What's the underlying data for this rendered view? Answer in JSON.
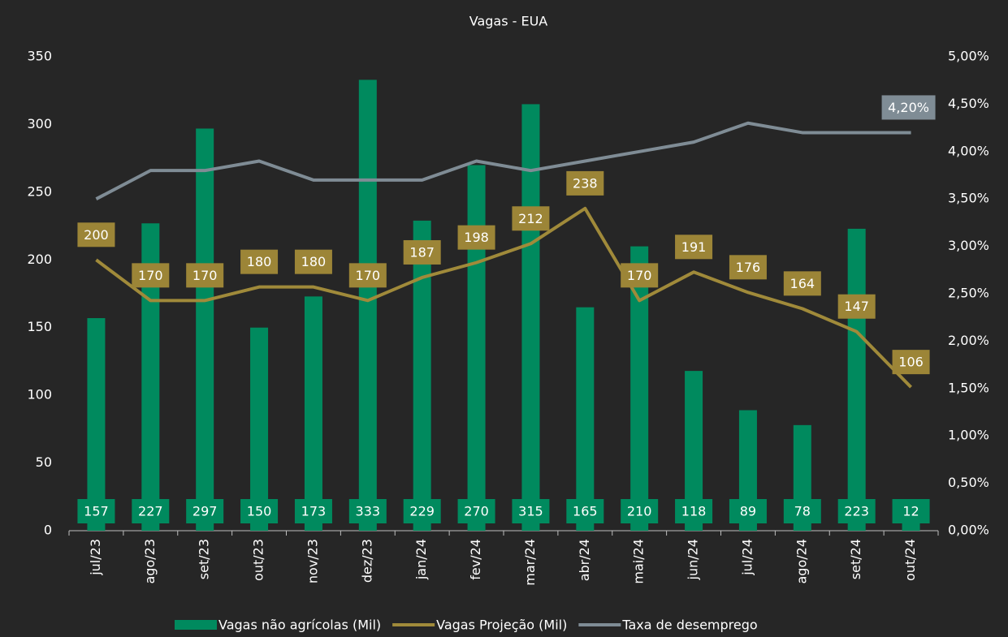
{
  "chart_data": {
    "type": "bar-line",
    "title": "Vagas - EUA",
    "categories": [
      "jul/23",
      "ago/23",
      "set/23",
      "out/23",
      "nov/23",
      "dez/23",
      "jan/24",
      "fev/24",
      "mar/24",
      "abr/24",
      "mai/24",
      "jun/24",
      "jul/24",
      "ago/24",
      "set/24",
      "out/24"
    ],
    "series": [
      {
        "name": "Vagas não agrícolas (Mil)",
        "type": "bar",
        "color": "#008a5e",
        "label_color": "#008a5e",
        "values": [
          157,
          227,
          297,
          150,
          173,
          333,
          229,
          270,
          315,
          165,
          210,
          118,
          89,
          78,
          223,
          12
        ]
      },
      {
        "name": "Vagas Projeção (Mil)",
        "type": "line",
        "color": "#a08a3a",
        "label_color": "#9c8537",
        "values": [
          200,
          170,
          170,
          180,
          180,
          170,
          187,
          198,
          212,
          238,
          170,
          191,
          176,
          164,
          147,
          106
        ]
      },
      {
        "name": "Taxa de desemprego",
        "type": "line",
        "axis": "y2",
        "color": "#7f8c95",
        "label_color": "#7f8c95",
        "values": [
          3.5,
          3.8,
          3.8,
          3.9,
          3.7,
          3.7,
          3.7,
          3.9,
          3.8,
          3.9,
          4.0,
          4.1,
          4.3,
          4.2,
          4.2,
          4.2
        ],
        "value_labels": [
          null,
          null,
          null,
          null,
          null,
          null,
          null,
          null,
          null,
          null,
          null,
          null,
          null,
          null,
          null,
          "4,20%"
        ]
      }
    ],
    "ylim": [
      0,
      350
    ],
    "yticks": [
      0,
      50,
      100,
      150,
      200,
      250,
      300,
      350
    ],
    "y2lim": [
      0,
      5
    ],
    "y2ticks": [
      {
        "value": 0,
        "label": "0,00%"
      },
      {
        "value": 0.5,
        "label": "0,50%"
      },
      {
        "value": 1,
        "label": "1,00%"
      },
      {
        "value": 1.5,
        "label": "1,50%"
      },
      {
        "value": 2,
        "label": "2,00%"
      },
      {
        "value": 2.5,
        "label": "2,50%"
      },
      {
        "value": 3,
        "label": "3,00%"
      },
      {
        "value": 3.5,
        "label": "3,50%"
      },
      {
        "value": 4,
        "label": "4,00%"
      },
      {
        "value": 4.5,
        "label": "4,50%"
      },
      {
        "value": 5,
        "label": "5,00%"
      }
    ],
    "legend": "bottom",
    "grid": false
  }
}
